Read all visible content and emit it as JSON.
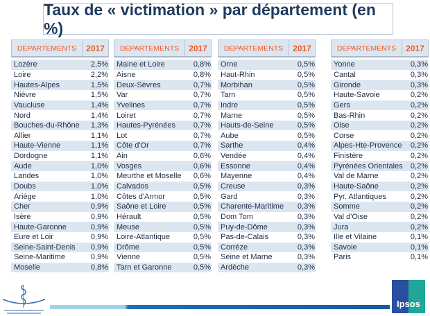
{
  "title": "Taux de « victimation » par département (en %)",
  "header": {
    "col1": "DEPARTEMENTS",
    "col2": "2017"
  },
  "tables": [
    [
      [
        "Lozère",
        "2,5%"
      ],
      [
        "Loire",
        "2,2%"
      ],
      [
        "Hautes-Alpes",
        "1,5%"
      ],
      [
        "Nièvre",
        "1,5%"
      ],
      [
        "Vaucluse",
        "1,4%"
      ],
      [
        "Nord",
        "1,4%"
      ],
      [
        "Bouches-du-Rhône",
        "1,3%"
      ],
      [
        "Allier",
        "1,1%"
      ],
      [
        "Haute-Vienne",
        "1,1%"
      ],
      [
        "Dordogne",
        "1,1%"
      ],
      [
        "Aude",
        "1,0%"
      ],
      [
        "Landes",
        "1,0%"
      ],
      [
        "Doubs",
        "1,0%"
      ],
      [
        "Ariège",
        "1,0%"
      ],
      [
        "Cher",
        "0,9%"
      ],
      [
        "Isère",
        "0,9%"
      ],
      [
        "Haute-Garonne",
        "0,9%"
      ],
      [
        "Eure et Loir",
        "0,9%"
      ],
      [
        "Seine-Saint-Denis",
        "0,9%"
      ],
      [
        "Seine-Maritime",
        "0,9%"
      ],
      [
        "Moselle",
        "0,8%"
      ]
    ],
    [
      [
        "Maine et Loire",
        "0,8%"
      ],
      [
        "Aisne",
        "0,8%"
      ],
      [
        "Deux-Sèvres",
        "0,7%"
      ],
      [
        "Var",
        "0,7%"
      ],
      [
        "Yvelines",
        "0,7%"
      ],
      [
        "Loiret",
        "0,7%"
      ],
      [
        "Hautes-Pyrénées",
        "0,7%"
      ],
      [
        "Lot",
        "0,7%"
      ],
      [
        "Côte d'Or",
        "0,7%"
      ],
      [
        "Ain",
        "0,6%"
      ],
      [
        "Vosges",
        "0,6%"
      ],
      [
        "Meurthe et Moselle",
        "0,6%"
      ],
      [
        "Calvados",
        "0,5%"
      ],
      [
        "Côtes d'Armor",
        "0,5%"
      ],
      [
        "Saône et Loire",
        "0,5%"
      ],
      [
        "Hérault",
        "0,5%"
      ],
      [
        "Meuse",
        "0,5%"
      ],
      [
        "Loire-Atlantique",
        "0,5%"
      ],
      [
        "Drôme",
        "0,5%"
      ],
      [
        "Vienne",
        "0,5%"
      ],
      [
        "Tarn et Garonne",
        "0,5%"
      ]
    ],
    [
      [
        "Orne",
        "0,5%"
      ],
      [
        "Haut-Rhin",
        "0,5%"
      ],
      [
        "Morbihan",
        "0,5%"
      ],
      [
        "Tarn",
        "0,5%"
      ],
      [
        "Indre",
        "0,5%"
      ],
      [
        "Marne",
        "0,5%"
      ],
      [
        "Hauts-de-Seine",
        "0,5%"
      ],
      [
        "Aube",
        "0,5%"
      ],
      [
        "Sarthe",
        "0,4%"
      ],
      [
        "Vendée",
        "0,4%"
      ],
      [
        "Essonne",
        "0,4%"
      ],
      [
        "Mayenne",
        "0,4%"
      ],
      [
        "Creuse",
        "0,3%"
      ],
      [
        "Gard",
        "0,3%"
      ],
      [
        "Charente-Maritime",
        "0,3%"
      ],
      [
        "Dom Tom",
        "0,3%"
      ],
      [
        "Puy-de-Dôme",
        "0,3%"
      ],
      [
        "Pas-de-Calais",
        "0,3%"
      ],
      [
        "Corrèze",
        "0,3%"
      ],
      [
        "Seine et Marne",
        "0,3%"
      ],
      [
        "Ardèche",
        "0,3%"
      ]
    ],
    [
      [
        "Yonne",
        "0,3%"
      ],
      [
        "Cantal",
        "0,3%"
      ],
      [
        "Gironde",
        "0,3%"
      ],
      [
        "Haute-Savoie",
        "0,2%"
      ],
      [
        "Gers",
        "0,2%"
      ],
      [
        "Bas-Rhin",
        "0,2%"
      ],
      [
        "Oise",
        "0,2%"
      ],
      [
        "Corse",
        "0,2%"
      ],
      [
        "Alpes-Hte-Provence",
        "0,2%"
      ],
      [
        "Finistère",
        "0,2%"
      ],
      [
        "Pyrénées Orientales",
        "0,2%"
      ],
      [
        "Val de Marne",
        "0,2%"
      ],
      [
        "Haute-Saône",
        "0,2%"
      ],
      [
        "Pyr. Atlantiques",
        "0,2%"
      ],
      [
        "Somme",
        "0,2%"
      ],
      [
        "Val d'Oise",
        "0,2%"
      ],
      [
        "Jura",
        "0,2%"
      ],
      [
        "Ille et Vilaine",
        "0,1%"
      ],
      [
        "Savoie",
        "0,1%"
      ],
      [
        "Paris",
        "0,1%"
      ]
    ]
  ],
  "logos": {
    "left": "Ordre National des Médecins - Conseil National de l'Ordre",
    "right": "Ipsos"
  },
  "colors": {
    "header_text": "#f25a22",
    "row_alt": "#dce6f1",
    "title": "#1f3a5c"
  }
}
